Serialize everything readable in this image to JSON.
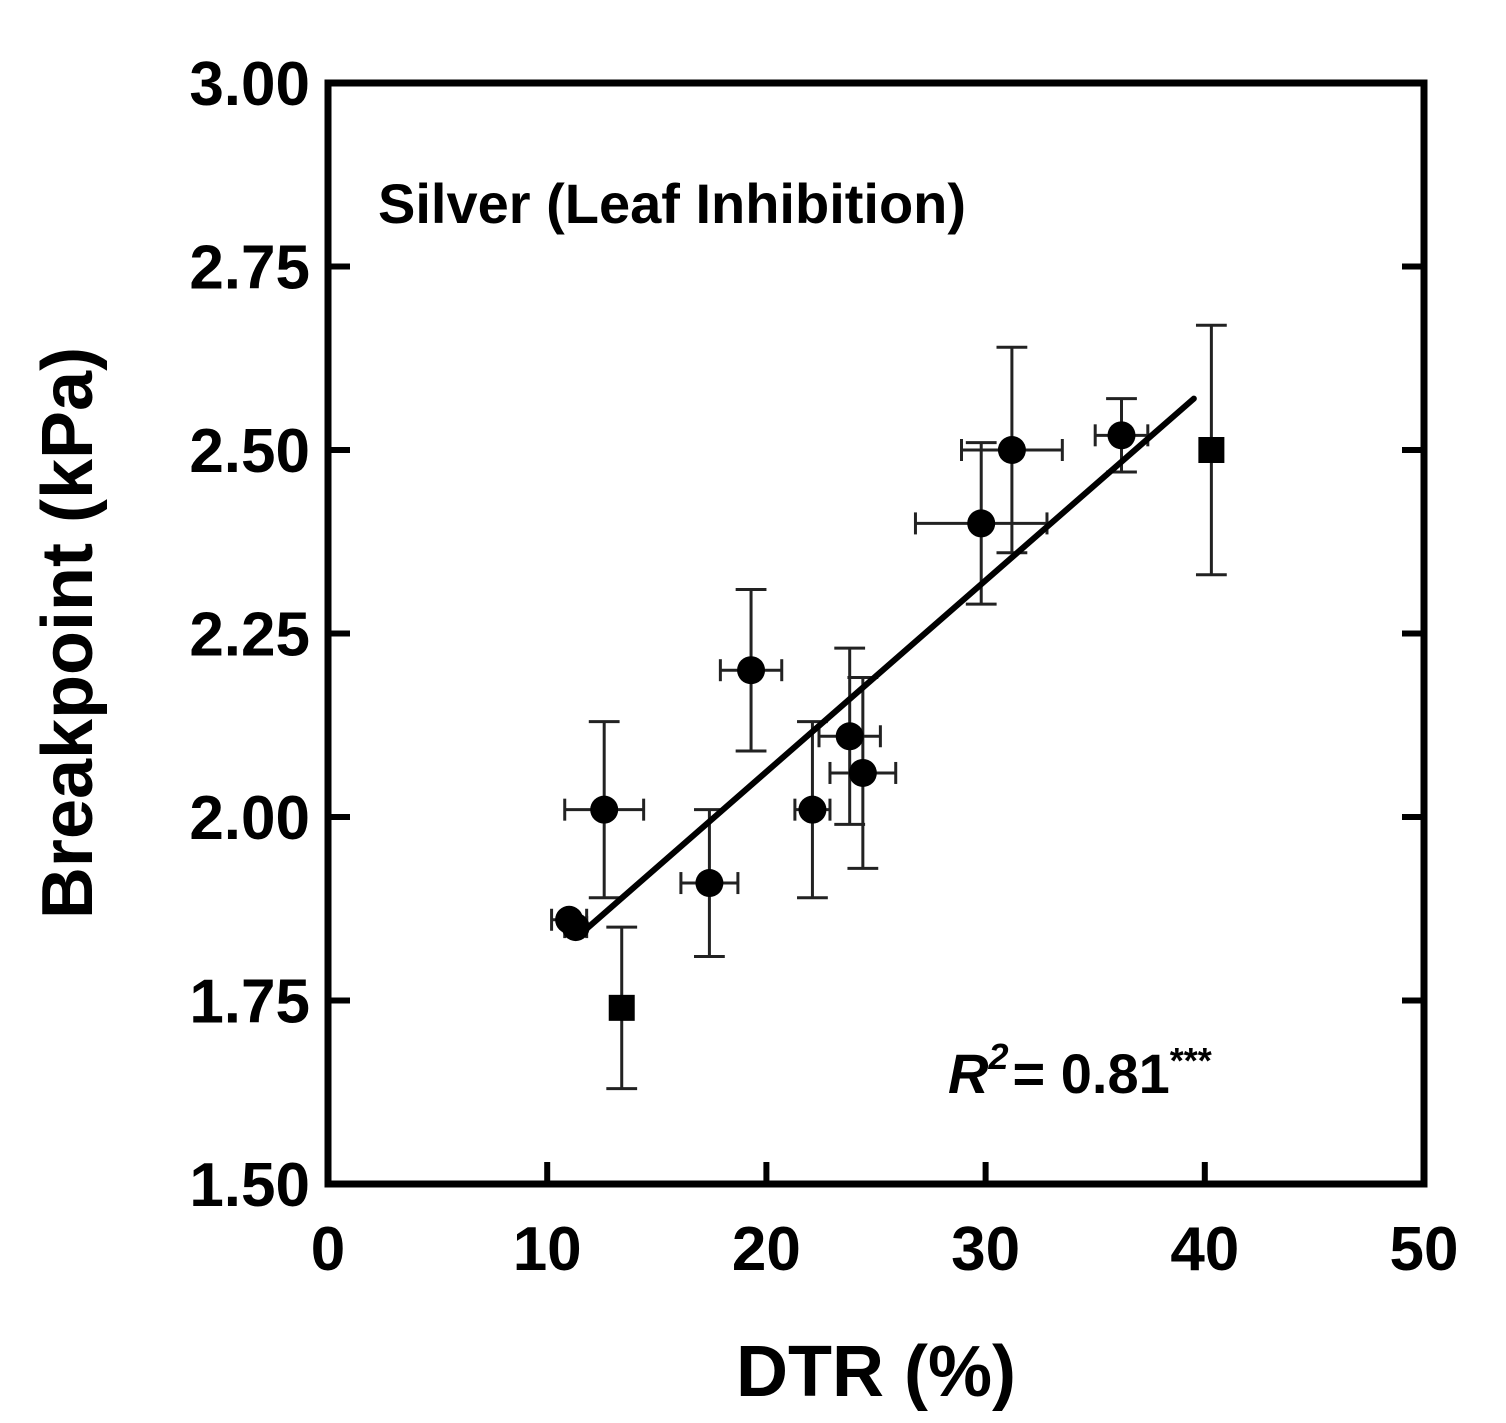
{
  "chart_data": {
    "type": "scatter",
    "xlabel": "DTR (%)",
    "ylabel": "Breakpoint (kPa)",
    "xlim": [
      0,
      50
    ],
    "ylim": [
      1.5,
      3.0
    ],
    "x_ticks": [
      0,
      10,
      20,
      30,
      40,
      50
    ],
    "x_tick_labels": [
      "0",
      "10",
      "20",
      "30",
      "40",
      "50"
    ],
    "y_ticks": [
      1.5,
      1.75,
      2.0,
      2.25,
      2.5,
      2.75,
      3.0
    ],
    "y_tick_labels": [
      "1.50",
      "1.75",
      "2.00",
      "2.25",
      "2.50",
      "2.75",
      "3.00"
    ],
    "grid": false,
    "annotation": "Silver (Leaf Inhibition)",
    "r2_label": "R",
    "r2_sup": "2",
    "r2_value": "= 0.81",
    "r2_sig": "***",
    "series": [
      {
        "name": "Circles",
        "marker": "circle",
        "points": [
          {
            "x": 11.0,
            "y": 1.86,
            "xerr": 0.8,
            "yerr": 0
          },
          {
            "x": 11.3,
            "y": 1.85,
            "xerr": 0.5,
            "yerr": 0
          },
          {
            "x": 12.6,
            "y": 2.01,
            "xerr": 1.8,
            "yerr": 0.12
          },
          {
            "x": 17.4,
            "y": 1.91,
            "xerr": 1.3,
            "yerr": 0.1
          },
          {
            "x": 19.3,
            "y": 2.2,
            "xerr": 1.4,
            "yerr": 0.11
          },
          {
            "x": 22.1,
            "y": 2.01,
            "xerr": 0.8,
            "yerr": 0.12
          },
          {
            "x": 23.8,
            "y": 2.11,
            "xerr": 1.4,
            "yerr": 0.12
          },
          {
            "x": 24.4,
            "y": 2.06,
            "xerr": 1.5,
            "yerr": 0.13
          },
          {
            "x": 29.8,
            "y": 2.4,
            "xerr": 3.0,
            "yerr": 0.11
          },
          {
            "x": 31.2,
            "y": 2.5,
            "xerr": 2.3,
            "yerr": 0.14
          },
          {
            "x": 36.2,
            "y": 2.52,
            "xerr": 1.2,
            "yerr": 0.05
          }
        ]
      },
      {
        "name": "Squares",
        "marker": "square",
        "points": [
          {
            "x": 13.4,
            "y": 1.74,
            "xerr": 0,
            "yerr": 0.11
          },
          {
            "x": 40.3,
            "y": 2.5,
            "xerr": 0,
            "yerr": 0.17
          }
        ]
      }
    ],
    "regression": {
      "x": [
        11.5,
        39.5
      ],
      "y": [
        1.84,
        2.57
      ]
    }
  }
}
